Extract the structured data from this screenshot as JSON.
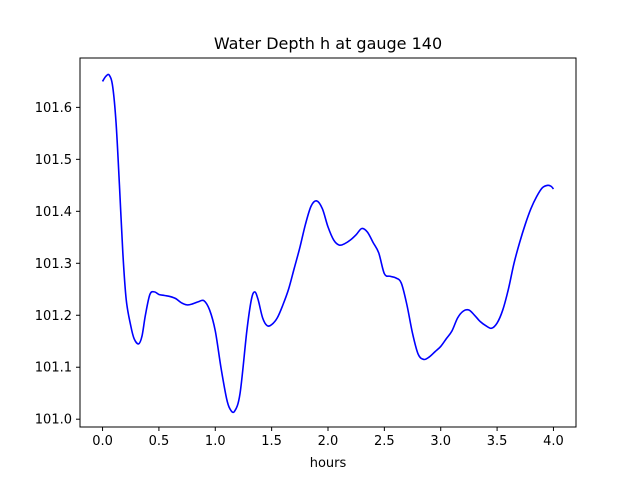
{
  "chart_data": {
    "type": "line",
    "title": "Water Depth h at gauge 140",
    "xlabel": "hours",
    "ylabel": "",
    "xlim": [
      -0.2,
      4.2
    ],
    "ylim": [
      100.985,
      101.695
    ],
    "xticks": [
      0.0,
      0.5,
      1.0,
      1.5,
      2.0,
      2.5,
      3.0,
      3.5,
      4.0
    ],
    "xtick_labels": [
      "0.0",
      "0.5",
      "1.0",
      "1.5",
      "2.0",
      "2.5",
      "3.0",
      "3.5",
      "4.0"
    ],
    "yticks": [
      101.0,
      101.1,
      101.2,
      101.3,
      101.4,
      101.5,
      101.6
    ],
    "ytick_labels": [
      "101.0",
      "101.1",
      "101.2",
      "101.3",
      "101.4",
      "101.5",
      "101.6"
    ],
    "grid": false,
    "series": [
      {
        "color": "#0000ff",
        "x": [
          0.0,
          0.03,
          0.06,
          0.09,
          0.12,
          0.15,
          0.18,
          0.21,
          0.25,
          0.28,
          0.32,
          0.35,
          0.38,
          0.42,
          0.46,
          0.5,
          0.55,
          0.6,
          0.65,
          0.7,
          0.75,
          0.8,
          0.85,
          0.9,
          0.95,
          1.0,
          1.05,
          1.1,
          1.13,
          1.17,
          1.22,
          1.28,
          1.32,
          1.35,
          1.38,
          1.42,
          1.46,
          1.5,
          1.55,
          1.6,
          1.65,
          1.7,
          1.75,
          1.8,
          1.85,
          1.9,
          1.95,
          2.0,
          2.05,
          2.1,
          2.15,
          2.2,
          2.25,
          2.3,
          2.35,
          2.4,
          2.45,
          2.5,
          2.55,
          2.6,
          2.65,
          2.7,
          2.75,
          2.8,
          2.85,
          2.9,
          2.95,
          3.0,
          3.05,
          3.1,
          3.15,
          3.2,
          3.25,
          3.3,
          3.35,
          3.4,
          3.45,
          3.5,
          3.55,
          3.6,
          3.65,
          3.7,
          3.75,
          3.8,
          3.85,
          3.9,
          3.95,
          3.98,
          4.0
        ],
        "values": [
          101.65,
          101.66,
          101.662,
          101.64,
          101.57,
          101.45,
          101.32,
          101.23,
          101.18,
          101.155,
          101.145,
          101.16,
          101.2,
          101.24,
          101.245,
          101.24,
          101.238,
          101.236,
          101.232,
          101.224,
          101.22,
          101.222,
          101.226,
          101.228,
          101.21,
          101.17,
          101.1,
          101.04,
          101.02,
          101.015,
          101.05,
          101.17,
          101.23,
          101.245,
          101.23,
          101.195,
          101.18,
          101.182,
          101.195,
          101.22,
          101.25,
          101.29,
          101.33,
          101.375,
          101.41,
          101.42,
          101.405,
          101.37,
          101.345,
          101.335,
          101.338,
          101.345,
          101.355,
          101.367,
          101.36,
          101.34,
          101.32,
          101.28,
          101.275,
          101.272,
          101.262,
          101.22,
          101.165,
          101.125,
          101.115,
          101.12,
          101.13,
          101.14,
          101.155,
          101.17,
          101.195,
          101.208,
          101.21,
          101.2,
          101.188,
          101.18,
          101.175,
          101.185,
          101.21,
          101.25,
          101.3,
          101.34,
          101.375,
          101.405,
          101.428,
          101.445,
          101.45,
          101.448,
          101.443
        ]
      }
    ]
  }
}
